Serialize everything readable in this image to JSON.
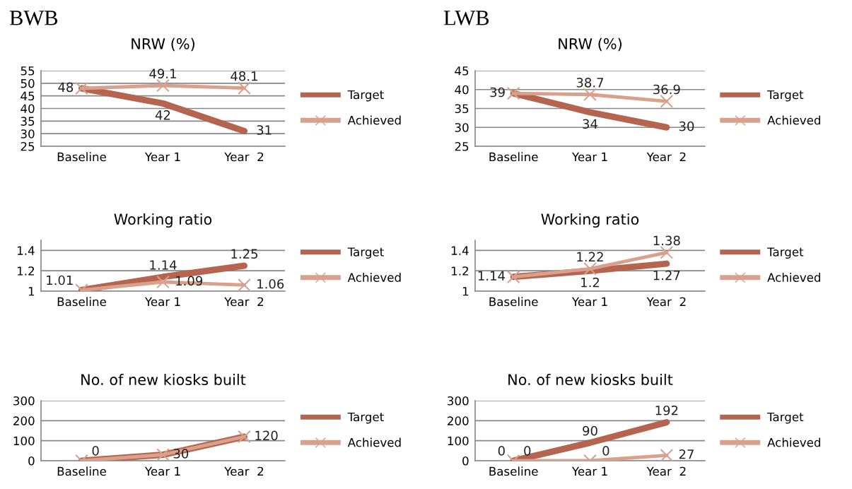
{
  "chart_data": [
    {
      "type": "line",
      "title": "NRW (%)",
      "annotations": [
        "BWB"
      ],
      "categories": [
        "Baseline",
        "Year 1",
        "Year  2"
      ],
      "ylim": [
        25,
        55
      ],
      "yticks": [
        25,
        30,
        35,
        40,
        45,
        50,
        55
      ],
      "grid": "y",
      "legend": "right",
      "series": [
        {
          "name": "Target",
          "color": "#b5654f",
          "values": [
            48,
            42,
            31
          ],
          "value_labels": [
            "48",
            "42",
            "31"
          ],
          "marker": "none"
        },
        {
          "name": "Achieved",
          "color": "#d9a08c",
          "values": [
            48,
            49.1,
            48.1
          ],
          "value_labels": [
            null,
            "49.1",
            "48.1"
          ],
          "marker": "cross"
        }
      ]
    },
    {
      "type": "line",
      "title": "NRW (%)",
      "annotations": [
        "LWB"
      ],
      "categories": [
        "Baseline",
        "Year 1",
        "Year  2"
      ],
      "ylim": [
        25,
        45
      ],
      "yticks": [
        25,
        30,
        35,
        40,
        45
      ],
      "grid": "y",
      "legend": "right",
      "series": [
        {
          "name": "Target",
          "color": "#b5654f",
          "values": [
            39,
            34,
            30
          ],
          "value_labels": [
            "39",
            "34",
            "30"
          ],
          "marker": "none"
        },
        {
          "name": "Achieved",
          "color": "#d9a08c",
          "values": [
            39,
            38.7,
            36.9
          ],
          "value_labels": [
            null,
            "38.7",
            "36.9"
          ],
          "marker": "cross"
        }
      ]
    },
    {
      "type": "line",
      "title": "Working ratio",
      "categories": [
        "Baseline",
        "Year 1",
        "Year  2"
      ],
      "ylim": [
        1,
        1.5
      ],
      "yticks": [
        {
          "value": 1,
          "label": "1"
        },
        1.2,
        1.4
      ],
      "grid": "y",
      "legend": "right",
      "series": [
        {
          "name": "Target",
          "color": "#b5654f",
          "values": [
            1.01,
            1.14,
            1.25
          ],
          "value_labels": [
            "1.01",
            "1.14",
            "1.25"
          ],
          "marker": "none"
        },
        {
          "name": "Achieved",
          "color": "#d9a08c",
          "values": [
            1.01,
            1.09,
            1.06
          ],
          "value_labels": [
            null,
            "1.09",
            "1.06"
          ],
          "marker": "cross"
        }
      ]
    },
    {
      "type": "line",
      "title": "Working ratio",
      "categories": [
        "Baseline",
        "Year 1",
        "Year  2"
      ],
      "ylim": [
        1,
        1.5
      ],
      "yticks": [
        {
          "value": 1,
          "label": "1"
        },
        1.2,
        1.4
      ],
      "grid": "y",
      "legend": "right",
      "series": [
        {
          "name": "Target",
          "color": "#b5654f",
          "values": [
            1.14,
            1.2,
            1.27
          ],
          "value_labels": [
            "1.14",
            "1.2",
            "1.27"
          ],
          "marker": "none"
        },
        {
          "name": "Achieved",
          "color": "#d9a08c",
          "values": [
            1.14,
            1.22,
            1.38
          ],
          "value_labels": [
            null,
            "1.22",
            "1.38"
          ],
          "marker": "cross"
        }
      ]
    },
    {
      "type": "line",
      "title": "No. of new kiosks built",
      "categories": [
        "Baseline",
        "Year 1",
        "Year  2"
      ],
      "ylim": [
        0,
        300
      ],
      "yticks": [
        0,
        100,
        200,
        300
      ],
      "grid": "y",
      "legend": "right",
      "series": [
        {
          "name": "Target",
          "color": "#b5654f",
          "values": [
            0,
            30,
            120
          ],
          "value_labels": [
            null,
            null,
            null
          ],
          "marker": "none"
        },
        {
          "name": "Achieved",
          "color": "#d9a08c",
          "values": [
            0,
            30,
            120
          ],
          "value_labels": [
            "0",
            "30",
            "120"
          ],
          "marker": "cross"
        }
      ]
    },
    {
      "type": "line",
      "title": "No. of new kiosks built",
      "categories": [
        "Baseline",
        "Year 1",
        "Year  2"
      ],
      "ylim": [
        0,
        300
      ],
      "yticks": [
        0,
        100,
        200,
        300
      ],
      "grid": "y",
      "legend": "right",
      "series": [
        {
          "name": "Target",
          "color": "#b5654f",
          "values": [
            0,
            90,
            192
          ],
          "value_labels": [
            "0",
            "90",
            "192"
          ],
          "marker": "none"
        },
        {
          "name": "Achieved",
          "color": "#d9a08c",
          "values": [
            0,
            0,
            27
          ],
          "value_labels": [
            "0",
            "0",
            "27"
          ],
          "marker": "cross"
        }
      ]
    }
  ]
}
